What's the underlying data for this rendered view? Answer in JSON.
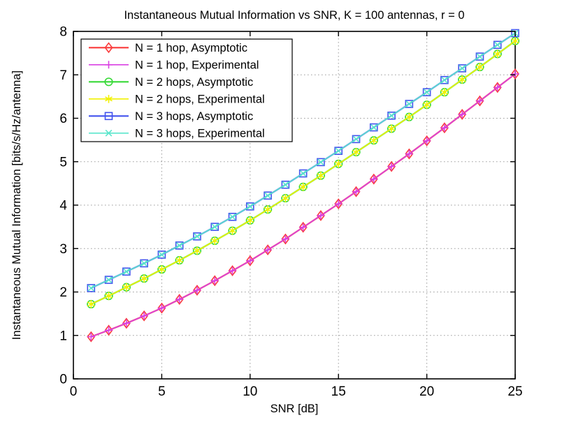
{
  "chart_data": {
    "type": "line",
    "title": "Instantaneous Mutual Information vs SNR, K = 100 antennas, r = 0",
    "xlabel": "SNR [dB]",
    "ylabel": "Instantaneous Mutual Information [bits/s/Hz/antenna]",
    "xlim": [
      0,
      25
    ],
    "ylim": [
      0,
      8
    ],
    "xticks": [
      0,
      5,
      10,
      15,
      20,
      25
    ],
    "yticks": [
      0,
      1,
      2,
      3,
      4,
      5,
      6,
      7,
      8
    ],
    "grid": true,
    "legend_position": "top-left",
    "x": [
      1,
      2,
      3,
      4,
      5,
      6,
      7,
      8,
      9,
      10,
      11,
      12,
      13,
      14,
      15,
      16,
      17,
      18,
      19,
      20,
      21,
      22,
      23,
      24,
      25
    ],
    "series": [
      {
        "name": "N = 1 hop, Asymptotic",
        "color": "#fa3a3a",
        "marker": "diamond",
        "line_width": 2.2,
        "values": [
          0.97,
          1.12,
          1.28,
          1.45,
          1.63,
          1.83,
          2.04,
          2.26,
          2.49,
          2.72,
          2.97,
          3.22,
          3.49,
          3.76,
          4.03,
          4.31,
          4.6,
          4.89,
          5.18,
          5.48,
          5.78,
          6.09,
          6.4,
          6.71,
          7.02
        ]
      },
      {
        "name": "N = 1 hop, Experimental",
        "color": "#da41e3",
        "marker": "plus",
        "line_width": 1.6,
        "values": [
          0.97,
          1.12,
          1.28,
          1.45,
          1.63,
          1.83,
          2.04,
          2.26,
          2.49,
          2.72,
          2.97,
          3.22,
          3.49,
          3.76,
          4.03,
          4.31,
          4.6,
          4.89,
          5.18,
          5.48,
          5.78,
          6.09,
          6.4,
          6.71,
          7.02
        ]
      },
      {
        "name": "N = 2 hops, Asymptotic",
        "color": "#36d936",
        "marker": "circle",
        "line_width": 2.2,
        "values": [
          1.72,
          1.91,
          2.11,
          2.31,
          2.52,
          2.73,
          2.95,
          3.18,
          3.41,
          3.65,
          3.9,
          4.16,
          4.42,
          4.68,
          4.95,
          5.22,
          5.49,
          5.76,
          6.03,
          6.31,
          6.6,
          6.89,
          7.18,
          7.48,
          7.78
        ]
      },
      {
        "name": "N = 2 hops, Experimental",
        "color": "#f2f200",
        "marker": "asterisk",
        "line_width": 1.6,
        "values": [
          1.72,
          1.91,
          2.11,
          2.31,
          2.52,
          2.73,
          2.95,
          3.18,
          3.41,
          3.65,
          3.9,
          4.16,
          4.42,
          4.68,
          4.95,
          5.22,
          5.49,
          5.76,
          6.03,
          6.31,
          6.6,
          6.89,
          7.18,
          7.48,
          7.78
        ]
      },
      {
        "name": "N = 3 hops, Asymptotic",
        "color": "#4253ee",
        "marker": "square",
        "line_width": 2.2,
        "values": [
          2.09,
          2.28,
          2.47,
          2.66,
          2.86,
          3.07,
          3.28,
          3.5,
          3.73,
          3.97,
          4.22,
          4.47,
          4.73,
          4.99,
          5.25,
          5.52,
          5.79,
          6.06,
          6.33,
          6.6,
          6.88,
          7.15,
          7.42,
          7.69,
          7.96
        ]
      },
      {
        "name": "N = 3 hops, Experimental",
        "color": "#5be6cc",
        "marker": "x",
        "line_width": 1.6,
        "values": [
          2.09,
          2.28,
          2.47,
          2.66,
          2.86,
          3.07,
          3.28,
          3.5,
          3.73,
          3.97,
          4.22,
          4.47,
          4.73,
          4.99,
          5.25,
          5.52,
          5.79,
          6.06,
          6.33,
          6.6,
          6.88,
          7.15,
          7.42,
          7.69,
          7.96
        ]
      }
    ],
    "grid_color": "#999999",
    "axis_color": "#000000"
  }
}
